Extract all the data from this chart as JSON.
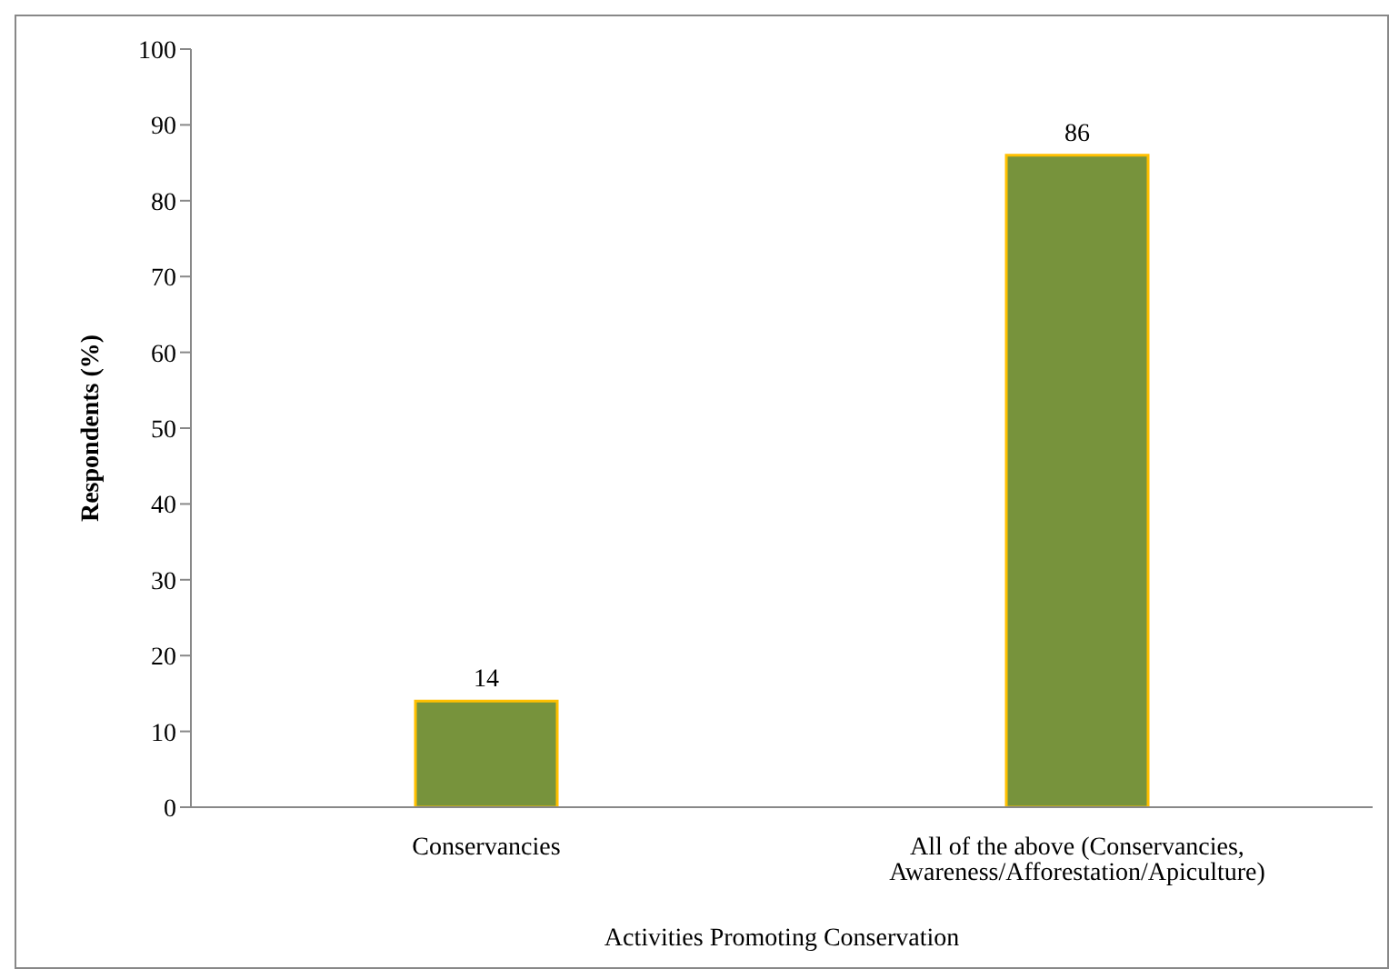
{
  "chart_data": {
    "type": "bar",
    "categories": [
      "Conservancies",
      "All of the above (Conservancies, Awareness/Afforestation/Apiculture)"
    ],
    "values": [
      14,
      86
    ],
    "color": "#77933c",
    "xlabel": "Activities Promoting Conservation",
    "ylabel": "Respondents (%)",
    "ylim": [
      0,
      100
    ],
    "yticks": [
      0,
      10,
      20,
      30,
      40,
      50,
      60,
      70,
      80,
      90,
      100
    ],
    "data_labels": true,
    "grid": false
  }
}
